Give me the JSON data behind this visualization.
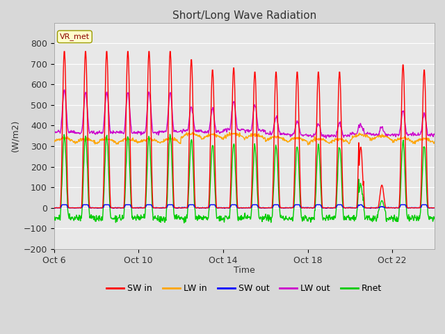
{
  "title": "Short/Long Wave Radiation",
  "ylabel": "(W/m2)",
  "xlabel": "Time",
  "annotation_text": "VR_met",
  "ylim": [
    -200,
    900
  ],
  "yticks": [
    -200,
    -100,
    0,
    100,
    200,
    300,
    400,
    500,
    600,
    700,
    800
  ],
  "colors": {
    "SW_in": "#ff0000",
    "LW_in": "#ffa500",
    "SW_out": "#0000ff",
    "LW_out": "#cc00cc",
    "Rnet": "#00cc00"
  },
  "background_color": "#d8d8d8",
  "axes_bg": "#e8e8e8",
  "n_days": 18,
  "grid_color": "#ffffff",
  "line_width": 1.0,
  "shown_ticks": [
    0,
    4,
    8,
    12,
    16
  ],
  "shown_labels": [
    "Oct 6",
    "Oct 10",
    "Oct 14",
    "Oct 18",
    "Oct 22"
  ]
}
